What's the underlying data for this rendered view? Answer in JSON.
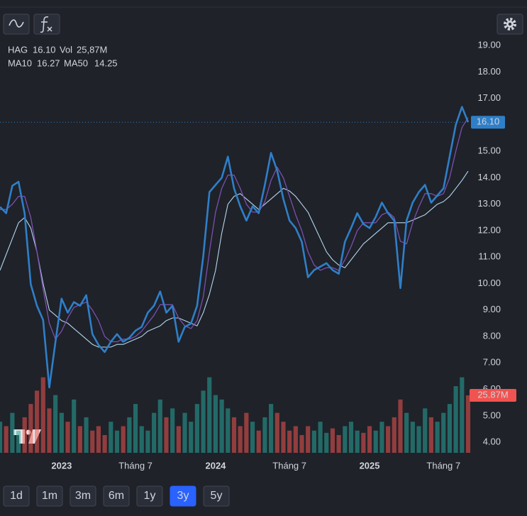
{
  "chart_data": {
    "type": "line",
    "categories": [
      null,
      null,
      null,
      null,
      null,
      null,
      null,
      null,
      null,
      null,
      "2023",
      null,
      null,
      null,
      null,
      null,
      null,
      null,
      null,
      null,
      null,
      null,
      "Tháng 7",
      null,
      null,
      null,
      null,
      null,
      null,
      null,
      null,
      null,
      null,
      null,
      null,
      "2024",
      null,
      null,
      null,
      null,
      null,
      null,
      null,
      null,
      null,
      null,
      null,
      "Tháng 7",
      null,
      null,
      null,
      null,
      null,
      null,
      null,
      null,
      null,
      null,
      null,
      null,
      "2025",
      null,
      null,
      null,
      null,
      null,
      null,
      null,
      null,
      null,
      null,
      null,
      "Tháng 7",
      null,
      null,
      null,
      null
    ],
    "series": [
      {
        "name": "HAG",
        "color": "#2f7fc8",
        "last_label": "16.10",
        "values": [
          12.9,
          12.66,
          13.7,
          13.85,
          12.66,
          9.97,
          9.16,
          8.62,
          6.07,
          7.8,
          9.43,
          8.9,
          9.3,
          9.16,
          9.56,
          8.09,
          7.68,
          7.41,
          7.8,
          8.09,
          7.8,
          7.95,
          8.22,
          8.36,
          8.9,
          9.16,
          9.7,
          8.9,
          9.16,
          7.8,
          8.36,
          8.49,
          9.16,
          11.04,
          13.46,
          13.73,
          14.0,
          14.8,
          13.6,
          12.92,
          12.38,
          12.92,
          12.66,
          13.73,
          14.94,
          14.27,
          13.2,
          12.38,
          12.1,
          11.58,
          10.24,
          10.51,
          10.64,
          10.77,
          10.51,
          10.37,
          11.58,
          12.1,
          12.66,
          12.25,
          12.1,
          12.52,
          13.06,
          12.66,
          12.38,
          9.83,
          12.38,
          13.06,
          13.46,
          13.73,
          13.06,
          13.33,
          13.6,
          14.8,
          16.0,
          16.68,
          16.1
        ]
      },
      {
        "name": "MA10",
        "color": "#7b4fb0",
        "last_label": "16.27",
        "values": [
          12.8,
          12.8,
          13.0,
          13.3,
          13.3,
          12.5,
          11.2,
          9.8,
          8.5,
          7.9,
          8.2,
          8.7,
          9.1,
          9.2,
          9.3,
          9.0,
          8.6,
          8.0,
          7.8,
          7.8,
          7.9,
          7.9,
          8.0,
          8.2,
          8.5,
          8.8,
          9.2,
          9.2,
          9.2,
          8.7,
          8.4,
          8.3,
          8.6,
          9.5,
          11.2,
          12.7,
          13.6,
          14.1,
          14.1,
          13.6,
          13.0,
          12.7,
          12.7,
          13.1,
          13.9,
          14.4,
          14.0,
          13.3,
          12.6,
          12.0,
          11.2,
          10.7,
          10.5,
          10.6,
          10.6,
          10.5,
          10.9,
          11.4,
          12.0,
          12.3,
          12.3,
          12.3,
          12.6,
          12.7,
          12.5,
          11.6,
          11.5,
          12.3,
          12.9,
          13.4,
          13.4,
          13.3,
          13.4,
          14.0,
          15.0,
          15.9,
          16.27
        ]
      },
      {
        "name": "MA50",
        "color": "#b4d6ee",
        "last_label": "14.25",
        "values": [
          10.5,
          11.1,
          11.7,
          12.3,
          12.5,
          12.1,
          11.2,
          10.0,
          9.0,
          8.8,
          8.6,
          8.5,
          8.3,
          8.1,
          7.9,
          7.7,
          7.6,
          7.6,
          7.6,
          7.7,
          7.7,
          7.8,
          7.9,
          8.0,
          8.2,
          8.3,
          8.4,
          8.6,
          8.7,
          8.7,
          8.6,
          8.5,
          8.4,
          8.9,
          9.6,
          10.5,
          11.9,
          13.0,
          13.3,
          13.4,
          13.2,
          13.0,
          12.8,
          13.0,
          13.2,
          13.4,
          13.6,
          13.5,
          13.3,
          13.0,
          12.7,
          12.2,
          11.7,
          11.2,
          10.9,
          10.7,
          10.6,
          10.9,
          11.2,
          11.5,
          11.7,
          11.9,
          12.1,
          12.3,
          12.3,
          12.3,
          12.3,
          12.4,
          12.5,
          12.6,
          12.8,
          13.0,
          13.1,
          13.3,
          13.6,
          13.9,
          14.25
        ]
      },
      {
        "name": "Vol",
        "type": "bar",
        "axis": "y2",
        "color": "#f05350",
        "up_color": "#26a69a",
        "last_label": "25,87M",
        "tag_label": "25.87M",
        "values": [
          14,
          12,
          18,
          10,
          16,
          22,
          28,
          34,
          20,
          26,
          18,
          14,
          24,
          12,
          16,
          10,
          12,
          8,
          14,
          10,
          12,
          16,
          22,
          12,
          10,
          18,
          24,
          16,
          20,
          12,
          18,
          14,
          22,
          28,
          34,
          26,
          24,
          20,
          16,
          12,
          18,
          14,
          10,
          16,
          22,
          18,
          14,
          10,
          12,
          8,
          12,
          10,
          14,
          9,
          11,
          8,
          12,
          14,
          10,
          9,
          12,
          10,
          14,
          12,
          16,
          24,
          18,
          14,
          12,
          20,
          16,
          14,
          18,
          22,
          30,
          34,
          25.87
        ]
      }
    ],
    "ylim": [
      3.6,
      20.4
    ],
    "yticks": [
      {
        "value": 4,
        "label": "4.00"
      },
      {
        "value": 5,
        "label": "5.00"
      },
      {
        "value": 6,
        "label": "6.00"
      },
      {
        "value": 7,
        "label": "7.00"
      },
      {
        "value": 8,
        "label": "8.00"
      },
      {
        "value": 9,
        "label": "9.00"
      },
      {
        "value": 10,
        "label": "10.00"
      },
      {
        "value": 11,
        "label": "11.00"
      },
      {
        "value": 12,
        "label": "12.00"
      },
      {
        "value": 13,
        "label": "13.00"
      },
      {
        "value": 14,
        "label": "14.00"
      },
      {
        "value": 15,
        "label": "15.00"
      },
      {
        "value": 16,
        "label": "16.00"
      },
      {
        "value": 17,
        "label": "17.00"
      },
      {
        "value": 18,
        "label": "18.00"
      },
      {
        "value": 19,
        "label": "19.00"
      }
    ],
    "y2lim": [
      0,
      200
    ],
    "grid": false
  },
  "range_buttons": [
    "1d",
    "1m",
    "3m",
    "6m",
    "1y",
    "3y",
    "5y"
  ],
  "active_range": "3y"
}
